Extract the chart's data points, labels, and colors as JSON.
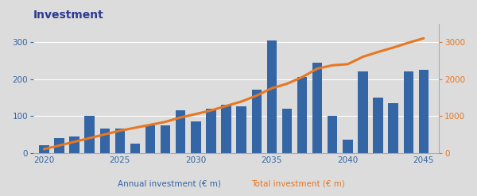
{
  "years": [
    2020,
    2021,
    2022,
    2023,
    2024,
    2025,
    2026,
    2027,
    2028,
    2029,
    2030,
    2031,
    2032,
    2033,
    2034,
    2035,
    2036,
    2037,
    2038,
    2039,
    2040,
    2041,
    2042,
    2043,
    2044,
    2045
  ],
  "annual_investment": [
    20,
    40,
    45,
    100,
    65,
    65,
    25,
    75,
    75,
    115,
    85,
    120,
    130,
    125,
    170,
    305,
    120,
    205,
    245,
    100,
    35,
    220,
    150,
    135,
    220,
    225
  ],
  "total_investment": [
    100,
    200,
    300,
    400,
    500,
    600,
    680,
    760,
    840,
    960,
    1050,
    1150,
    1270,
    1390,
    1550,
    1750,
    1870,
    2050,
    2280,
    2370,
    2400,
    2600,
    2730,
    2850,
    2980,
    3100
  ],
  "bar_color": "#3465A4",
  "line_color": "#E87722",
  "bg_color": "#DCDCDC",
  "title": "Investment",
  "title_color": "#2B3A8F",
  "left_label": "Annual investment (€ m)",
  "right_label": "Total investment (€ m)",
  "left_label_color": "#3465A4",
  "right_label_color": "#E87722",
  "left_ylim": [
    0,
    350
  ],
  "right_ylim": [
    0,
    3500
  ],
  "left_yticks": [
    0,
    100,
    200,
    300
  ],
  "right_yticks": [
    0,
    1000,
    2000,
    3000
  ],
  "xticks": [
    2020,
    2025,
    2030,
    2035,
    2040,
    2045
  ],
  "tick_color": "#3465A4",
  "right_tick_color": "#E87722",
  "grid_color": "#BDBDBD"
}
